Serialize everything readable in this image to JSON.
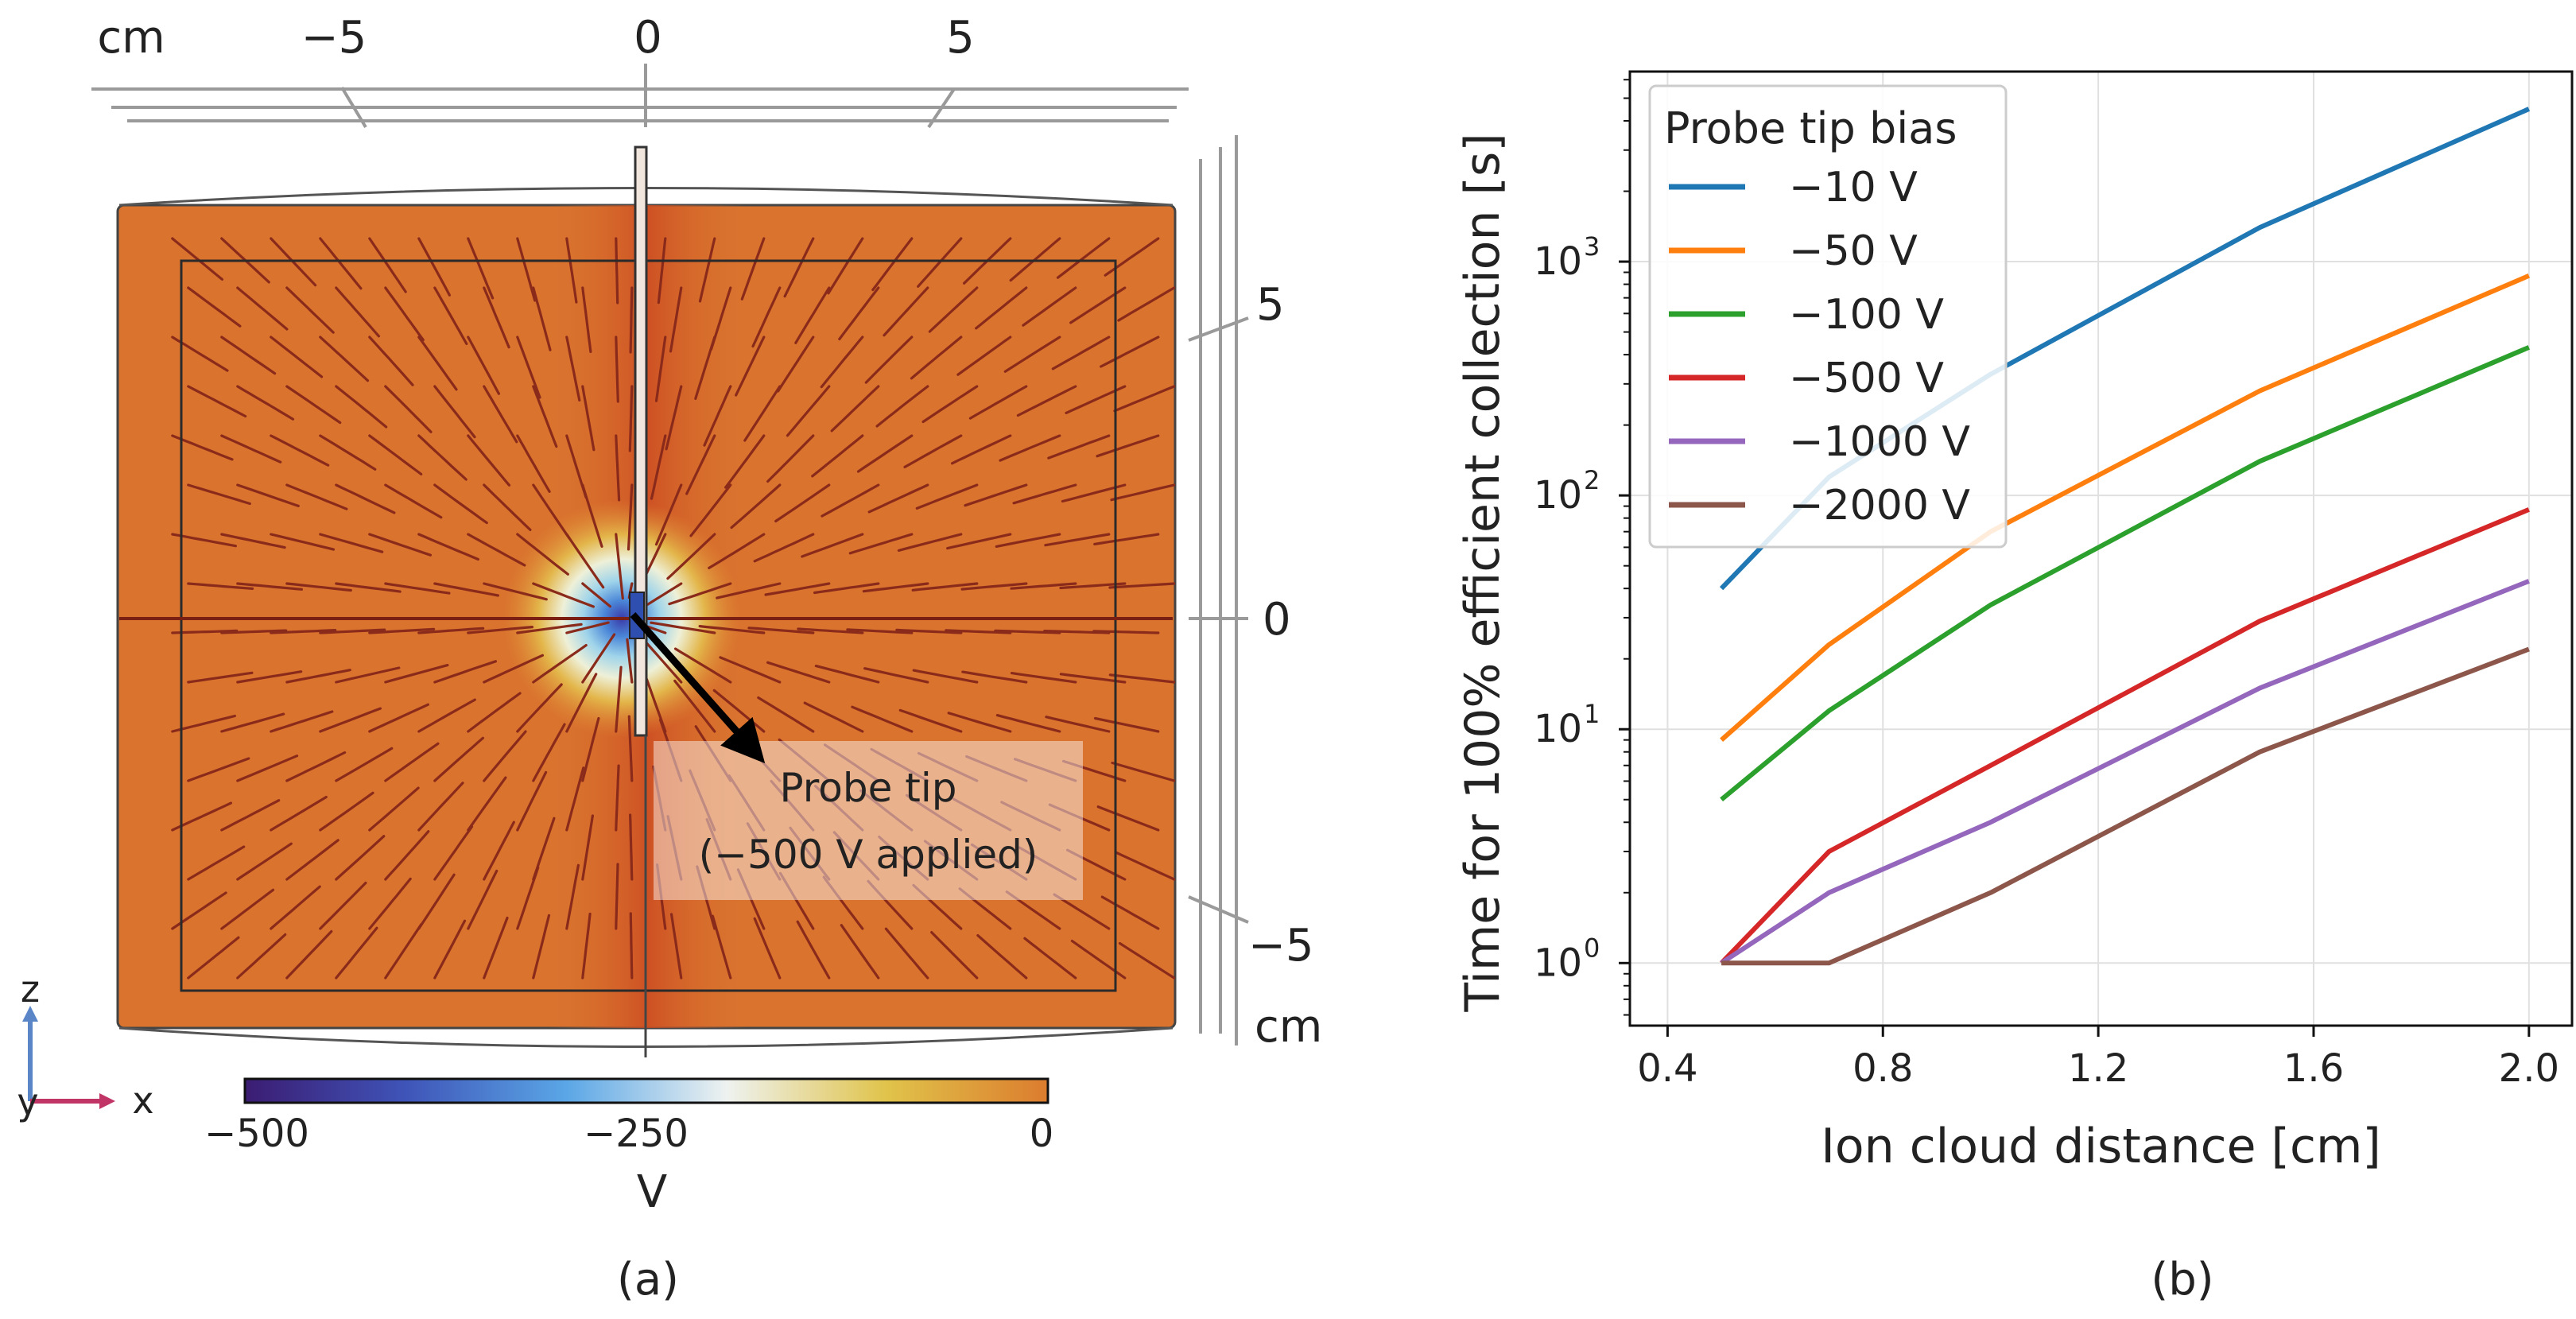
{
  "panel_a": {
    "label": "(a)",
    "top_axis": {
      "unit": "cm",
      "ticks": [
        "−5",
        "0",
        "5"
      ]
    },
    "right_axis": {
      "unit": "cm",
      "ticks": [
        "5",
        "0",
        "−5"
      ]
    },
    "colorbar": {
      "ticks": [
        "−500",
        "−250",
        "0"
      ],
      "label": "V",
      "colors": [
        "#3b1c72",
        "#3f54b8",
        "#5aa6e6",
        "#eef2f0",
        "#e0c34a",
        "#dc7c2e"
      ]
    },
    "annotation": {
      "line1": "Probe tip",
      "line2": "(−500 V applied)"
    },
    "axes_triad": {
      "z": "z",
      "y": "y",
      "x": "x"
    },
    "background_color": "#d9732e",
    "streamline_color": "#8a2a1a"
  },
  "panel_b": {
    "label": "(b)",
    "chart_data": {
      "type": "line",
      "xlabel": "Ion cloud distance [cm]",
      "ylabel": "Time for 100% efficient collection [s]",
      "xlim": [
        0.33,
        2.08
      ],
      "ylim": [
        0.54,
        6500
      ],
      "yscale": "log",
      "xticks": [
        "0.4",
        "0.8",
        "1.2",
        "1.6",
        "2.0"
      ],
      "xtick_values": [
        0.4,
        0.8,
        1.2,
        1.6,
        2.0
      ],
      "ytick_values": [
        1,
        10,
        100,
        1000
      ],
      "ytick_exponents": [
        "0",
        "1",
        "2",
        "3"
      ],
      "ytick_base": "10",
      "grid": true,
      "legend": {
        "title": "Probe tip bias",
        "placement": "top-left"
      },
      "x": [
        0.5,
        0.7,
        1.0,
        1.5,
        2.0
      ],
      "series": [
        {
          "name": "−10 V",
          "color": "#1f77b4",
          "values": [
            40,
            120,
            330,
            1400,
            4500
          ]
        },
        {
          "name": "−50 V",
          "color": "#ff7f0e",
          "values": [
            9,
            23,
            70,
            280,
            870
          ]
        },
        {
          "name": "−100 V",
          "color": "#2ca02c",
          "values": [
            5,
            12,
            34,
            140,
            430
          ]
        },
        {
          "name": "−500 V",
          "color": "#d62728",
          "values": [
            1,
            3,
            7,
            29,
            87
          ]
        },
        {
          "name": "−1000 V",
          "color": "#9467bd",
          "values": [
            1,
            2,
            4,
            15,
            43
          ]
        },
        {
          "name": "−2000 V",
          "color": "#8c564b",
          "values": [
            1,
            1,
            2,
            8,
            22
          ]
        }
      ]
    }
  }
}
